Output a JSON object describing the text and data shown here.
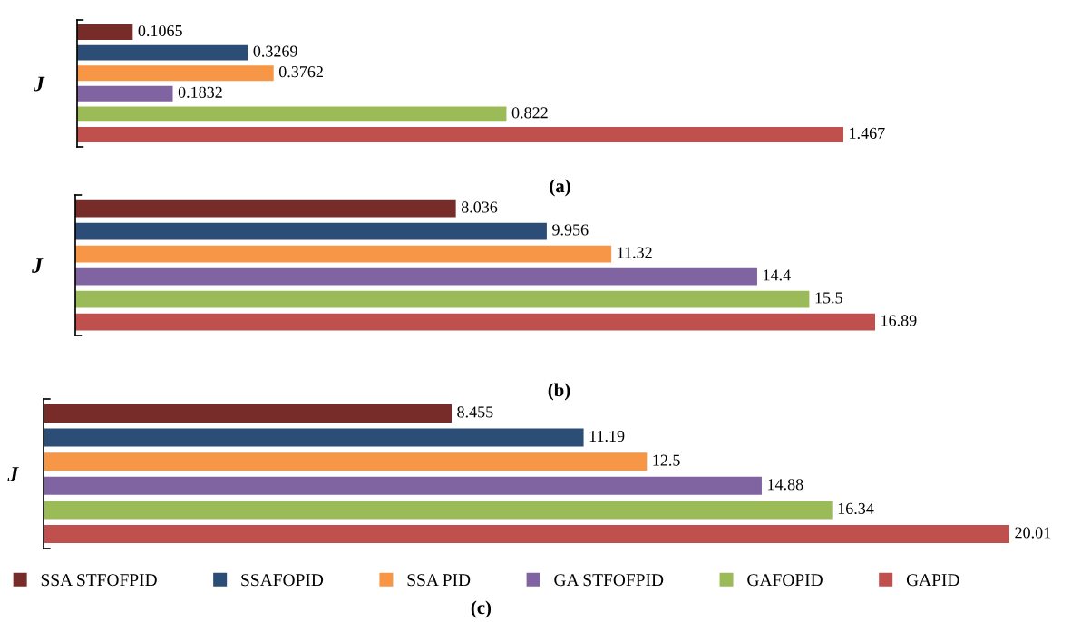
{
  "chart_data": [
    {
      "type": "bar",
      "orientation": "horizontal",
      "xlabel": "(a)",
      "categories": [
        "J"
      ],
      "data_labels": true,
      "tick_labels": "y",
      "grid": false,
      "series": [
        {
          "color": "#772c2a",
          "values": [
            0.1065
          ]
        },
        {
          "color": "#2c4d75",
          "values": [
            0.3269
          ]
        },
        {
          "color": "#f79646",
          "values": [
            0.3762
          ]
        },
        {
          "color": "#8064a2",
          "values": [
            0.1832
          ]
        },
        {
          "color": "#9bbb59",
          "values": [
            0.822
          ]
        },
        {
          "color": "#c0504d",
          "values": [
            1.467
          ]
        }
      ]
    },
    {
      "type": "bar",
      "orientation": "horizontal",
      "xlabel": "(b)",
      "categories": [
        "J"
      ],
      "data_labels": true,
      "tick_labels": "y",
      "grid": false,
      "series": [
        {
          "color": "#772c2a",
          "values": [
            8.036
          ]
        },
        {
          "color": "#2c4d75",
          "values": [
            9.956
          ]
        },
        {
          "color": "#f79646",
          "values": [
            11.32
          ]
        },
        {
          "color": "#8064a2",
          "values": [
            14.4
          ]
        },
        {
          "color": "#9bbb59",
          "values": [
            15.5
          ]
        },
        {
          "color": "#c0504d",
          "values": [
            16.89
          ]
        }
      ]
    },
    {
      "type": "bar",
      "orientation": "horizontal",
      "xlabel": "(c)",
      "categories": [
        "J"
      ],
      "data_labels": true,
      "tick_labels": "y",
      "grid": false,
      "legend": "bottom",
      "series": [
        {
          "name": "SSA STFOFPID",
          "color": "#772c2a",
          "values": [
            8.455
          ]
        },
        {
          "name": "SSAFOPID",
          "color": "#2c4d75",
          "values": [
            11.19
          ]
        },
        {
          "name": "SSA PID",
          "color": "#f79646",
          "values": [
            12.5
          ]
        },
        {
          "name": "GA STFOFPID",
          "color": "#8064a2",
          "values": [
            14.88
          ]
        },
        {
          "name": "GAFOPID",
          "color": "#9bbb59",
          "values": [
            16.34
          ]
        },
        {
          "name": "GAPID",
          "color": "#c0504d",
          "values": [
            20.01
          ]
        }
      ]
    }
  ]
}
